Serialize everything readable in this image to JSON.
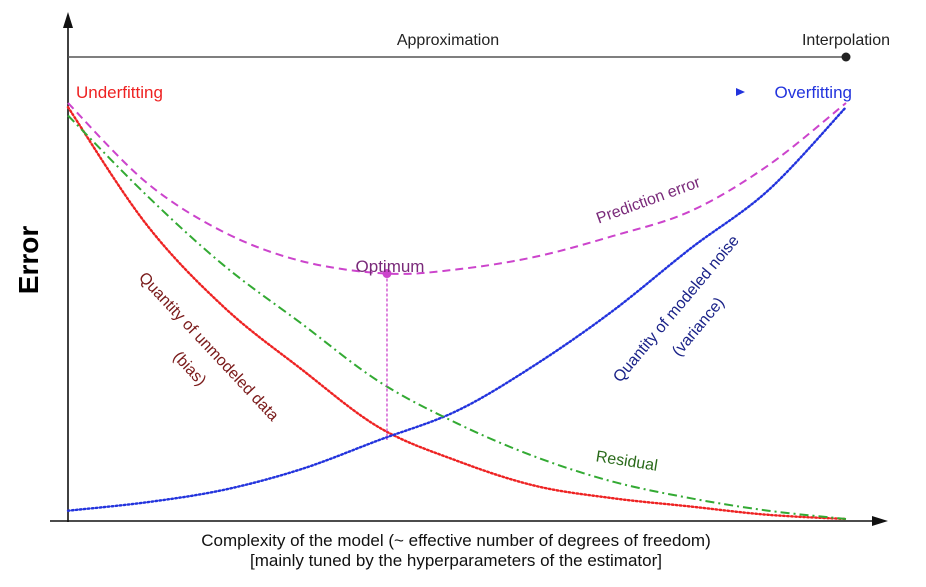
{
  "chart_data": {
    "type": "line",
    "title": "",
    "ylabel": "Error",
    "xlabel": "Complexity of the model (~ effective number of degrees of freedom)",
    "xlabel_sub": "[mainly tuned by the hyperparameters of the estimator]",
    "xlim": [
      0,
      1
    ],
    "ylim": [
      0,
      1
    ],
    "grid": false,
    "regime_axis": {
      "left_label": "Approximation",
      "right_label": "Interpolation"
    },
    "fit_arrow": {
      "left_label": "Underfitting",
      "right_label": "Overfitting"
    },
    "optimum": {
      "label": "Optimum",
      "x": 0.41,
      "y": 0.59
    },
    "series": [
      {
        "name": "Prediction error",
        "style": "dashed",
        "color": "#cc44cc",
        "x": [
          0,
          0.1,
          0.2,
          0.3,
          0.41,
          0.5,
          0.6,
          0.7,
          0.8,
          0.9,
          1.0
        ],
        "y": [
          1.0,
          0.81,
          0.69,
          0.62,
          0.59,
          0.6,
          0.63,
          0.68,
          0.74,
          0.85,
          1.0
        ]
      },
      {
        "name": "Quantity of unmodeled data (bias)",
        "label_lines": [
          "Quantity of unmodeled data",
          "(bias)"
        ],
        "style": "dotted",
        "color": "#ee2222",
        "x": [
          0,
          0.1,
          0.2,
          0.3,
          0.4,
          0.5,
          0.6,
          0.7,
          0.8,
          0.9,
          1.0
        ],
        "y": [
          0.99,
          0.71,
          0.51,
          0.36,
          0.22,
          0.14,
          0.08,
          0.05,
          0.03,
          0.01,
          0.0
        ]
      },
      {
        "name": "Quantity of modeled noise (variance)",
        "label_lines": [
          "Quantity of modeled noise",
          "(variance)"
        ],
        "style": "dotted",
        "color": "#2233dd",
        "x": [
          0,
          0.1,
          0.2,
          0.3,
          0.4,
          0.5,
          0.6,
          0.7,
          0.8,
          0.9,
          1.0
        ],
        "y": [
          0.02,
          0.04,
          0.07,
          0.12,
          0.19,
          0.26,
          0.37,
          0.5,
          0.65,
          0.79,
          0.99
        ]
      },
      {
        "name": "Residual",
        "style": "dashdot",
        "color": "#33aa33",
        "x": [
          0,
          0.1,
          0.2,
          0.3,
          0.4,
          0.5,
          0.6,
          0.7,
          0.8,
          0.9,
          1.0
        ],
        "y": [
          0.97,
          0.78,
          0.61,
          0.47,
          0.33,
          0.23,
          0.15,
          0.09,
          0.05,
          0.02,
          0.0
        ]
      }
    ]
  }
}
